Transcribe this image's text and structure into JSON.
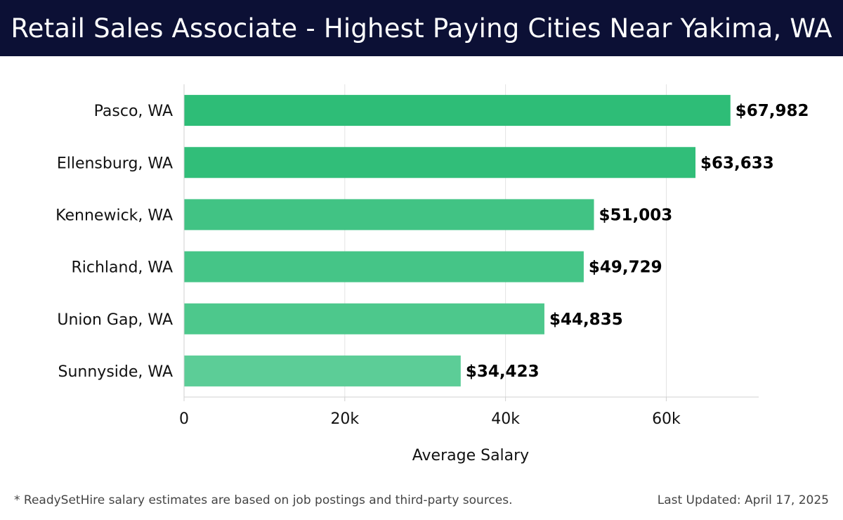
{
  "header": {
    "title": "Retail Sales Associate - Highest Paying Cities Near Yakima, WA"
  },
  "footer": {
    "note": "* ReadySetHire salary estimates are based on job postings and third-party sources.",
    "updated": "Last Updated: April 17, 2025"
  },
  "colors": {
    "header_bg": "#0c1035",
    "bar_colors": [
      "#2ebd77",
      "#31be79",
      "#41c384",
      "#45c587",
      "#4dc88c",
      "#5ccd97"
    ]
  },
  "chart_data": {
    "type": "bar",
    "orientation": "horizontal",
    "title": "Retail Sales Associate - Highest Paying Cities Near Yakima, WA",
    "xlabel": "Average Salary",
    "ylabel": "",
    "categories": [
      "Pasco, WA",
      "Ellensburg, WA",
      "Kennewick, WA",
      "Richland, WA",
      "Union Gap, WA",
      "Sunnyside, WA"
    ],
    "values": [
      67982,
      63633,
      51003,
      49729,
      44835,
      34423
    ],
    "value_labels": [
      "$67,982",
      "$63,633",
      "$51,003",
      "$49,729",
      "$44,835",
      "$34,423"
    ],
    "xlim": [
      0,
      71500
    ],
    "xticks": [
      0,
      20000,
      40000,
      60000
    ],
    "xtick_labels": [
      "0",
      "20k",
      "40k",
      "60k"
    ],
    "grid": "vertical",
    "legend": "none"
  }
}
